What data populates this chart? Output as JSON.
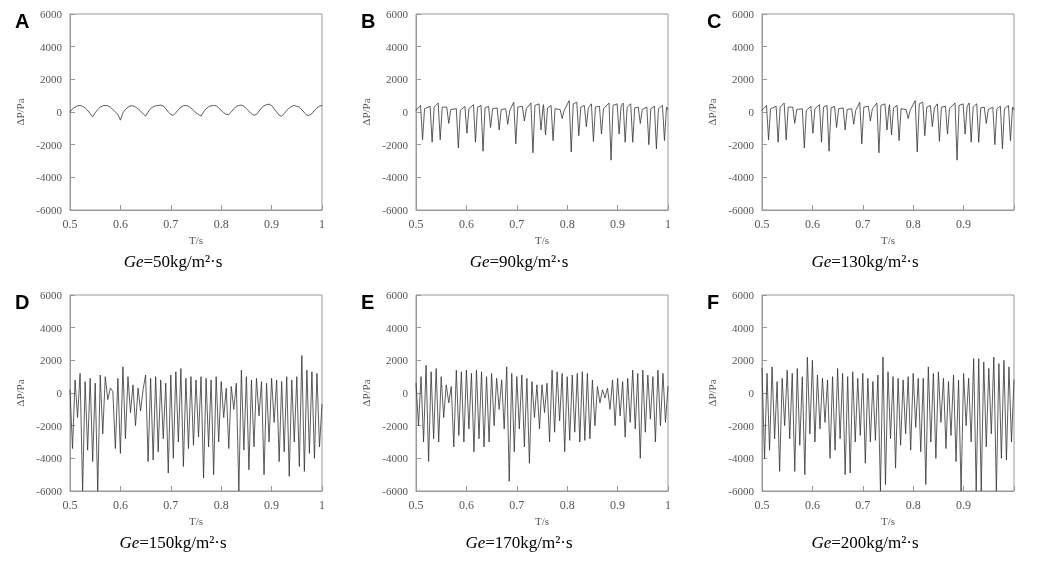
{
  "chart_data": [
    {
      "type": "line",
      "title": "A",
      "subtitle": "Ge=50kg/m²·s",
      "xlabel": "T/s",
      "ylabel": "ΔP/Pa",
      "xlim": [
        0.5,
        1
      ],
      "xticks": [
        0.5,
        0.6,
        0.7,
        0.8,
        0.9,
        1
      ],
      "ylim": [
        -6000,
        6000
      ],
      "yticks": [
        -6000,
        -4000,
        -2000,
        0,
        2000,
        4000,
        6000
      ],
      "grid": false,
      "marker": "none",
      "line_style": "solid",
      "x": [
        0.5,
        0.505,
        0.51,
        0.515,
        0.52,
        0.525,
        0.53,
        0.535,
        0.54,
        0.545,
        0.55,
        0.555,
        0.56,
        0.565,
        0.57,
        0.575,
        0.58,
        0.585,
        0.59,
        0.595,
        0.6,
        0.605,
        0.61,
        0.615,
        0.62,
        0.625,
        0.63,
        0.635,
        0.64,
        0.645,
        0.65,
        0.655,
        0.66,
        0.665,
        0.67,
        0.675,
        0.68,
        0.685,
        0.69,
        0.695,
        0.7,
        0.705,
        0.71,
        0.715,
        0.72,
        0.725,
        0.73,
        0.735,
        0.74,
        0.745,
        0.75,
        0.755,
        0.76,
        0.765,
        0.77,
        0.775,
        0.78,
        0.785,
        0.79,
        0.795,
        0.8,
        0.805,
        0.81,
        0.815,
        0.82,
        0.825,
        0.83,
        0.835,
        0.84,
        0.845,
        0.85,
        0.855,
        0.86,
        0.865,
        0.87,
        0.875,
        0.88,
        0.885,
        0.89,
        0.895,
        0.9,
        0.905,
        0.91,
        0.915,
        0.92,
        0.925,
        0.93,
        0.935,
        0.94,
        0.945,
        0.95,
        0.955,
        0.96,
        0.965,
        0.97,
        0.975,
        0.98,
        0.985,
        0.99,
        0.995,
        1
      ],
      "series": [
        {
          "color": "#333333",
          "values": [
            0,
            200,
            300,
            380,
            400,
            350,
            250,
            100,
            -100,
            -300,
            -50,
            150,
            300,
            380,
            400,
            380,
            300,
            150,
            0,
            -150,
            -500,
            -50,
            150,
            300,
            380,
            380,
            300,
            200,
            50,
            -100,
            -250,
            0,
            200,
            320,
            380,
            400,
            420,
            380,
            200,
            0,
            -150,
            -200,
            -50,
            150,
            300,
            380,
            400,
            350,
            250,
            100,
            -50,
            -150,
            -250,
            0,
            200,
            320,
            380,
            400,
            380,
            250,
            100,
            -50,
            -150,
            -150,
            0,
            200,
            350,
            400,
            420,
            350,
            200,
            50,
            -100,
            -200,
            -150,
            50,
            250,
            380,
            450,
            480,
            400,
            200,
            0,
            -200,
            -250,
            -100,
            100,
            250,
            350,
            400,
            350,
            300,
            150,
            -50,
            -200,
            -200,
            -100,
            100,
            250,
            350,
            400
          ]
        }
      ]
    },
    {
      "type": "line",
      "title": "B",
      "subtitle": "Ge=90kg/m²·s",
      "xlabel": "T/s",
      "ylabel": "ΔP/Pa",
      "xlim": [
        0.5,
        1
      ],
      "xticks": [
        0.5,
        0.6,
        0.7,
        0.8,
        0.9,
        1
      ],
      "ylim": [
        -6000,
        6000
      ],
      "yticks": [
        -6000,
        -4000,
        -2000,
        0,
        2000,
        4000,
        6000
      ],
      "grid": false,
      "marker": "none",
      "line_style": "solid",
      "x": [
        0.5,
        0.509,
        0.513,
        0.517,
        0.528,
        0.532,
        0.536,
        0.544,
        0.548,
        0.552,
        0.561,
        0.565,
        0.569,
        0.58,
        0.584,
        0.588,
        0.597,
        0.601,
        0.605,
        0.614,
        0.618,
        0.622,
        0.629,
        0.633,
        0.637,
        0.644,
        0.648,
        0.652,
        0.661,
        0.665,
        0.669,
        0.678,
        0.682,
        0.686,
        0.694,
        0.698,
        0.702,
        0.711,
        0.715,
        0.719,
        0.728,
        0.732,
        0.736,
        0.744,
        0.748,
        0.752,
        0.753,
        0.757,
        0.761,
        0.768,
        0.772,
        0.776,
        0.786,
        0.79,
        0.794,
        0.804,
        0.808,
        0.812,
        0.819,
        0.823,
        0.827,
        0.834,
        0.838,
        0.842,
        0.848,
        0.852,
        0.856,
        0.864,
        0.868,
        0.872,
        0.883,
        0.887,
        0.891,
        0.899,
        0.903,
        0.907,
        0.911,
        0.915,
        0.919,
        0.926,
        0.93,
        0.934,
        0.941,
        0.945,
        0.949,
        0.958,
        0.962,
        0.966,
        0.973,
        0.977,
        0.981,
        0.989,
        0.993,
        0.997,
        1
      ],
      "series": [
        {
          "color": "#333333",
          "values": [
            100,
            400,
            -1700,
            200,
            350,
            -1850,
            300,
            550,
            -1700,
            300,
            300,
            -700,
            150,
            200,
            -2200,
            100,
            350,
            -1300,
            200,
            450,
            -1850,
            300,
            400,
            -2400,
            250,
            350,
            -950,
            200,
            250,
            -1100,
            150,
            200,
            -750,
            100,
            600,
            -1950,
            300,
            350,
            -550,
            200,
            550,
            -2500,
            400,
            500,
            -1100,
            300,
            450,
            -1400,
            250,
            400,
            -1750,
            200,
            150,
            -400,
            100,
            700,
            -2450,
            500,
            600,
            -1450,
            300,
            400,
            -900,
            250,
            500,
            -1800,
            300,
            350,
            -1350,
            200,
            550,
            -2950,
            400,
            500,
            -1350,
            350,
            550,
            -1850,
            300,
            500,
            -1850,
            250,
            300,
            -700,
            150,
            300,
            -2000,
            200,
            350,
            -2250,
            200,
            400,
            -1750,
            300,
            150
          ]
        }
      ]
    },
    {
      "type": "line",
      "title": "C",
      "subtitle": "Ge=130kg/m²·s",
      "xlabel": "T/s",
      "ylabel": "ΔP/Pa",
      "xlim": [
        0.5,
        1
      ],
      "xticks": [
        0.5,
        0.6,
        0.7,
        0.8,
        0.9,
        {
          "value": 1,
          "label": null
        }
      ],
      "ylim": [
        -6000,
        6000
      ],
      "yticks": [
        -6000,
        -4000,
        -2000,
        0,
        2000,
        4000,
        6000
      ],
      "grid": false,
      "marker": "none",
      "line_style": "solid",
      "x": [
        0.5,
        0.509,
        0.513,
        0.517,
        0.528,
        0.532,
        0.536,
        0.544,
        0.548,
        0.552,
        0.561,
        0.565,
        0.569,
        0.58,
        0.584,
        0.588,
        0.597,
        0.601,
        0.605,
        0.614,
        0.618,
        0.622,
        0.629,
        0.633,
        0.637,
        0.644,
        0.648,
        0.652,
        0.661,
        0.665,
        0.669,
        0.678,
        0.682,
        0.686,
        0.694,
        0.698,
        0.702,
        0.711,
        0.715,
        0.719,
        0.728,
        0.732,
        0.736,
        0.744,
        0.748,
        0.752,
        0.753,
        0.757,
        0.761,
        0.768,
        0.772,
        0.776,
        0.786,
        0.79,
        0.794,
        0.804,
        0.808,
        0.812,
        0.819,
        0.823,
        0.827,
        0.834,
        0.838,
        0.842,
        0.848,
        0.852,
        0.856,
        0.864,
        0.868,
        0.872,
        0.883,
        0.887,
        0.891,
        0.899,
        0.903,
        0.907,
        0.911,
        0.915,
        0.919,
        0.926,
        0.93,
        0.934,
        0.941,
        0.945,
        0.949,
        0.958,
        0.962,
        0.966,
        0.973,
        0.977,
        0.981,
        0.989,
        0.993,
        0.997,
        1
      ],
      "series": [
        {
          "color": "#333333",
          "values": [
            100,
            400,
            -1700,
            200,
            350,
            -1850,
            300,
            550,
            -1700,
            300,
            300,
            -700,
            150,
            200,
            -2200,
            100,
            350,
            -1300,
            200,
            450,
            -1850,
            300,
            400,
            -2400,
            250,
            350,
            -950,
            200,
            250,
            -1100,
            150,
            200,
            -750,
            100,
            600,
            -1950,
            300,
            350,
            -550,
            200,
            550,
            -2500,
            400,
            500,
            -1100,
            300,
            450,
            -1400,
            250,
            400,
            -1750,
            200,
            150,
            -400,
            100,
            700,
            -2450,
            500,
            600,
            -1450,
            300,
            400,
            -900,
            250,
            500,
            -1800,
            300,
            350,
            -1350,
            200,
            550,
            -2950,
            400,
            500,
            -1350,
            350,
            550,
            -1850,
            300,
            500,
            -1850,
            250,
            300,
            -700,
            150,
            300,
            -2000,
            200,
            350,
            -2250,
            200,
            400,
            -1750,
            300,
            150
          ]
        }
      ]
    },
    {
      "type": "line",
      "title": "D",
      "subtitle": "Ge=150kg/m²·s",
      "xlabel": "T/s",
      "ylabel": "ΔP/Pa",
      "xlim": [
        0.5,
        1
      ],
      "xticks": [
        0.5,
        0.6,
        0.7,
        0.8,
        0.9,
        1
      ],
      "ylim": [
        -6000,
        6000
      ],
      "yticks": [
        -6000,
        -4000,
        -2000,
        0,
        2000,
        4000,
        6000
      ],
      "grid": false,
      "marker": "none",
      "line_style": "solid",
      "x": [
        0.5,
        0.505,
        0.51,
        0.515,
        0.52,
        0.525,
        0.53,
        0.535,
        0.54,
        0.545,
        0.55,
        0.555,
        0.56,
        0.565,
        0.57,
        0.575,
        0.58,
        0.585,
        0.59,
        0.595,
        0.6,
        0.605,
        0.61,
        0.615,
        0.62,
        0.625,
        0.63,
        0.635,
        0.64,
        0.645,
        0.65,
        0.655,
        0.66,
        0.665,
        0.67,
        0.675,
        0.68,
        0.685,
        0.69,
        0.695,
        0.7,
        0.705,
        0.71,
        0.715,
        0.72,
        0.725,
        0.73,
        0.735,
        0.74,
        0.745,
        0.75,
        0.755,
        0.76,
        0.765,
        0.77,
        0.775,
        0.78,
        0.785,
        0.79,
        0.795,
        0.8,
        0.805,
        0.81,
        0.815,
        0.82,
        0.825,
        0.83,
        0.835,
        0.84,
        0.845,
        0.85,
        0.855,
        0.86,
        0.865,
        0.87,
        0.875,
        0.88,
        0.885,
        0.89,
        0.895,
        0.9,
        0.905,
        0.91,
        0.915,
        0.92,
        0.925,
        0.93,
        0.935,
        0.94,
        0.945,
        0.95,
        0.955,
        0.96,
        0.965,
        0.97,
        0.975,
        0.98,
        0.985,
        0.99,
        0.995,
        1
      ],
      "series": [
        {
          "color": "#333333",
          "values": [
            200,
            -3400,
            800,
            -1500,
            1200,
            -6000,
            700,
            -3500,
            900,
            -4200,
            600,
            -6000,
            1100,
            -2500,
            1000,
            -400,
            300,
            100,
            -3400,
            900,
            -3700,
            1600,
            -2800,
            1000,
            -1200,
            500,
            -2000,
            300,
            -1100,
            200,
            1100,
            -4200,
            900,
            -4100,
            1000,
            -3600,
            800,
            -2800,
            600,
            -4900,
            1100,
            -4000,
            1300,
            -3000,
            1500,
            -4500,
            900,
            -3400,
            1000,
            -3200,
            800,
            -2700,
            1000,
            -5200,
            900,
            -3300,
            800,
            -5000,
            1000,
            -3000,
            700,
            -1500,
            300,
            -3400,
            400,
            -1000,
            600,
            -6000,
            1400,
            -3500,
            1000,
            -4700,
            800,
            -3300,
            900,
            -1400,
            700,
            -5000,
            600,
            -3000,
            900,
            -1800,
            800,
            -4200,
            700,
            -3600,
            1000,
            -5100,
            800,
            -3000,
            1000,
            -4500,
            2300,
            -4800,
            1400,
            -3700,
            1300,
            -4000,
            1200,
            -3300,
            -700
          ]
        }
      ]
    },
    {
      "type": "line",
      "title": "E",
      "subtitle": "Ge=170kg/m²·s",
      "xlabel": "T/s",
      "ylabel": "ΔP/Pa",
      "xlim": [
        0.5,
        1
      ],
      "xticks": [
        0.5,
        0.6,
        0.7,
        0.8,
        0.9,
        1
      ],
      "ylim": [
        -6000,
        6000
      ],
      "yticks": [
        -6000,
        -4000,
        -2000,
        0,
        2000,
        4000,
        6000
      ],
      "grid": false,
      "marker": "none",
      "line_style": "solid",
      "x": [
        0.5,
        0.505,
        0.51,
        0.515,
        0.52,
        0.525,
        0.53,
        0.535,
        0.54,
        0.545,
        0.55,
        0.555,
        0.56,
        0.565,
        0.57,
        0.575,
        0.58,
        0.585,
        0.59,
        0.595,
        0.6,
        0.605,
        0.61,
        0.615,
        0.62,
        0.625,
        0.63,
        0.635,
        0.64,
        0.645,
        0.65,
        0.655,
        0.66,
        0.665,
        0.67,
        0.675,
        0.68,
        0.685,
        0.69,
        0.695,
        0.7,
        0.705,
        0.71,
        0.715,
        0.72,
        0.725,
        0.73,
        0.735,
        0.74,
        0.745,
        0.75,
        0.755,
        0.76,
        0.765,
        0.77,
        0.775,
        0.78,
        0.785,
        0.79,
        0.795,
        0.8,
        0.805,
        0.81,
        0.815,
        0.82,
        0.825,
        0.83,
        0.835,
        0.84,
        0.845,
        0.85,
        0.855,
        0.86,
        0.865,
        0.87,
        0.875,
        0.88,
        0.885,
        0.89,
        0.895,
        0.9,
        0.905,
        0.91,
        0.915,
        0.92,
        0.925,
        0.93,
        0.935,
        0.94,
        0.945,
        0.95,
        0.955,
        0.96,
        0.965,
        0.97,
        0.975,
        0.98,
        0.985,
        0.99,
        0.995,
        1
      ],
      "series": [
        {
          "color": "#333333",
          "values": [
            600,
            -2000,
            1000,
            -3000,
            1700,
            -4200,
            1300,
            -2800,
            1500,
            -3000,
            1000,
            -1500,
            500,
            -600,
            400,
            -3300,
            1400,
            -2600,
            1300,
            -3000,
            1400,
            -2200,
            1200,
            -3600,
            1400,
            -2800,
            1300,
            -3300,
            1000,
            -3000,
            1200,
            -2000,
            900,
            -1000,
            800,
            -2200,
            1600,
            -5400,
            1200,
            -3600,
            1000,
            -2200,
            1100,
            -3300,
            900,
            -4300,
            700,
            -1500,
            500,
            -2200,
            500,
            -1200,
            600,
            -3000,
            1400,
            -2400,
            1300,
            -1700,
            1200,
            -3600,
            1000,
            -2900,
            1100,
            -2400,
            1200,
            -3000,
            1300,
            -2900,
            1200,
            -2800,
            800,
            -2000,
            400,
            -600,
            200,
            -300,
            300,
            -1000,
            800,
            -2000,
            900,
            -1400,
            700,
            -2700,
            900,
            -1800,
            1400,
            -2200,
            1200,
            -4000,
            1400,
            -2400,
            1100,
            -1600,
            1000,
            -3000,
            1400,
            -2000,
            1200,
            -1800,
            400
          ]
        }
      ]
    },
    {
      "type": "line",
      "title": "F",
      "subtitle": "Ge=200kg/m²·s",
      "xlabel": "T/s",
      "ylabel": "ΔP/Pa",
      "xlim": [
        0.5,
        1
      ],
      "xticks": [
        0.5,
        0.6,
        0.7,
        0.8,
        0.9,
        {
          "value": 1,
          "label": null
        }
      ],
      "ylim": [
        -6000,
        6000
      ],
      "yticks": [
        -6000,
        -4000,
        -2000,
        0,
        2000,
        4000,
        6000
      ],
      "grid": false,
      "marker": "none",
      "line_style": "solid",
      "x": [
        0.5,
        0.505,
        0.51,
        0.515,
        0.52,
        0.525,
        0.53,
        0.535,
        0.54,
        0.545,
        0.55,
        0.555,
        0.56,
        0.565,
        0.57,
        0.575,
        0.58,
        0.585,
        0.59,
        0.595,
        0.6,
        0.605,
        0.61,
        0.615,
        0.62,
        0.625,
        0.63,
        0.635,
        0.64,
        0.645,
        0.65,
        0.655,
        0.66,
        0.665,
        0.67,
        0.675,
        0.68,
        0.685,
        0.69,
        0.695,
        0.7,
        0.705,
        0.71,
        0.715,
        0.72,
        0.725,
        0.73,
        0.735,
        0.74,
        0.745,
        0.75,
        0.755,
        0.76,
        0.765,
        0.77,
        0.775,
        0.78,
        0.785,
        0.79,
        0.795,
        0.8,
        0.805,
        0.81,
        0.815,
        0.82,
        0.825,
        0.83,
        0.835,
        0.84,
        0.845,
        0.85,
        0.855,
        0.86,
        0.865,
        0.87,
        0.875,
        0.88,
        0.885,
        0.89,
        0.895,
        0.9,
        0.905,
        0.91,
        0.915,
        0.92,
        0.925,
        0.93,
        0.935,
        0.94,
        0.945,
        0.95,
        0.955,
        0.96,
        0.965,
        0.97,
        0.975,
        0.98,
        0.985,
        0.99,
        0.995,
        1
      ],
      "series": [
        {
          "color": "#333333",
          "values": [
            1500,
            -4000,
            1200,
            -3500,
            1600,
            -2800,
            700,
            -4800,
            900,
            -2000,
            1400,
            -2800,
            1200,
            -4800,
            1500,
            -3200,
            1000,
            -5000,
            2200,
            -2500,
            2000,
            -3000,
            1100,
            -2200,
            900,
            -1800,
            800,
            -4000,
            1000,
            -3500,
            1500,
            -2800,
            1200,
            -5000,
            1000,
            -4900,
            1300,
            -3000,
            900,
            -2600,
            1200,
            -4300,
            900,
            -3000,
            700,
            -2900,
            1100,
            -6000,
            2200,
            -5600,
            1300,
            -2800,
            1000,
            -4600,
            900,
            -3200,
            800,
            -2500,
            1000,
            -3500,
            1200,
            -2100,
            900,
            -3600,
            900,
            -5600,
            1600,
            -3000,
            1200,
            -4000,
            1300,
            -1800,
            900,
            -3400,
            700,
            -2600,
            1100,
            -4200,
            800,
            -6000,
            1200,
            -2000,
            900,
            -3000,
            2100,
            -6000,
            2100,
            -6000,
            1900,
            -3300,
            1500,
            -2500,
            2200,
            -6000,
            1800,
            -4000,
            2000,
            -4100,
            1600,
            -3000,
            800
          ]
        }
      ]
    }
  ]
}
